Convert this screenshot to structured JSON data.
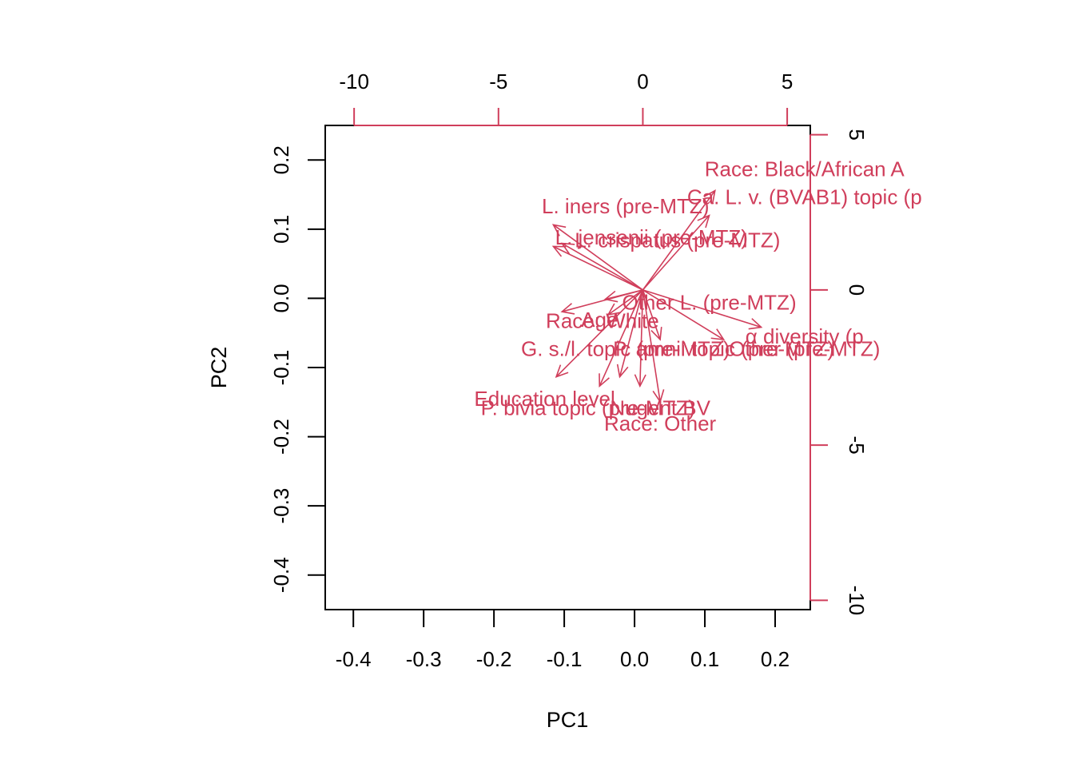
{
  "chart_data": {
    "type": "biplot",
    "xlabel": "PC1",
    "ylabel": "PC2",
    "xlim": [
      -0.44,
      0.25
    ],
    "ylim": [
      -0.45,
      0.25
    ],
    "xticks": [
      -0.4,
      -0.3,
      -0.2,
      -0.1,
      0.0,
      0.1,
      0.2
    ],
    "yticks": [
      -0.4,
      -0.3,
      -0.2,
      -0.1,
      0.0,
      0.1,
      0.2
    ],
    "xticks_top": [
      -10,
      -5,
      0,
      5
    ],
    "yticks_right": [
      -10,
      -5,
      0,
      5
    ],
    "top_axis_range": [
      -11.0,
      5.8
    ],
    "right_axis_range": [
      -10.3,
      5.3
    ],
    "colors": {
      "vectors": "#d03e5b",
      "axes": "#000000",
      "secondary_axes": "#d03e5b"
    },
    "vectors": [
      {
        "label": "Race: Black/African A",
        "x": 2.5,
        "y": 3.2,
        "label_x": 5.6,
        "label_y": 3.9
      },
      {
        "label": "Ca. L. v. (BVAB1) topic (p",
        "x": 2.3,
        "y": 2.4,
        "label_x": 5.6,
        "label_y": 3.0
      },
      {
        "label": "L. iners (pre-MTZ)",
        "x": -3.1,
        "y": 2.1,
        "label_x": -0.6,
        "label_y": 2.7
      },
      {
        "label": "L. jensenii (pre-MTZ)",
        "x": -2.8,
        "y": 1.5,
        "label_x": 0.3,
        "label_y": 1.7
      },
      {
        "label": "L. crispatus (pre-MTZ)",
        "x": -3.1,
        "y": 1.4,
        "label_x": 1.2,
        "label_y": 1.6
      },
      {
        "label": "Other L. (pre-MTZ)",
        "x": -1.3,
        "y": -0.3,
        "label_x": 2.3,
        "label_y": -0.4
      },
      {
        "label": "Age",
        "x": -1.2,
        "y": -0.8,
        "label_x": -1.5,
        "label_y": -0.95
      },
      {
        "label": "Race: White",
        "x": -2.8,
        "y": -0.7,
        "label_x": -1.4,
        "label_y": -1.0
      },
      {
        "label": "G. s./l. topic (pre-MTZ)",
        "x": -3.0,
        "y": -2.8,
        "label_x": -0.6,
        "label_y": -1.9
      },
      {
        "label": "P. amnii topic (pre-MTZ)",
        "x": 0.6,
        "y": -1.6,
        "label_x": 2.8,
        "label_y": -1.9
      },
      {
        "label": "α diversity (p",
        "x": 4.1,
        "y": -1.2,
        "label_x": 5.6,
        "label_y": -1.5
      },
      {
        "label": "Other (pre-MTZ)",
        "x": 2.8,
        "y": -1.6,
        "label_x": 5.6,
        "label_y": -1.9
      },
      {
        "label": "Education level",
        "x": -1.5,
        "y": -3.1,
        "label_x": -3.4,
        "label_y": -3.5
      },
      {
        "label": "P. bivia topic (pre-MTZ)",
        "x": -0.8,
        "y": -2.8,
        "label_x": -1.9,
        "label_y": -3.8
      },
      {
        "label": "Nugent BV",
        "x": -0.1,
        "y": -3.1,
        "label_x": 0.6,
        "label_y": -3.8
      },
      {
        "label": "Race: Other",
        "x": 0.6,
        "y": -3.6,
        "label_x": 0.6,
        "label_y": -4.3
      }
    ]
  }
}
